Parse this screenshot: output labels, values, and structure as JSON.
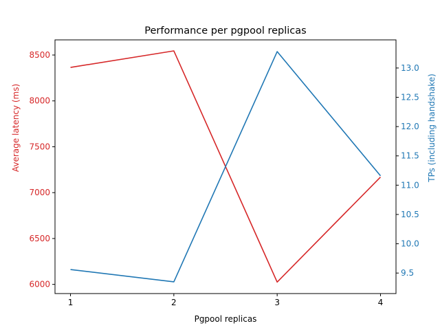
{
  "chart_data": {
    "type": "line",
    "title": "Performance per pgpool replicas",
    "xlabel": "Pgpool replicas",
    "x": [
      1,
      2,
      3,
      4
    ],
    "xticks": [
      "1",
      "2",
      "3",
      "4"
    ],
    "xlim": [
      0.85,
      4.15
    ],
    "series": [
      {
        "axis": "left",
        "color": "#d62728",
        "ylabel": "Average latency (ms)",
        "values": [
          8365,
          8545,
          6025,
          7170
        ],
        "ylim": [
          5900,
          8665
        ],
        "ticks": [
          6000,
          6500,
          7000,
          7500,
          8000,
          8500
        ],
        "tick_labels": [
          "6000",
          "6500",
          "7000",
          "7500",
          "8000",
          "8500"
        ]
      },
      {
        "axis": "right",
        "color": "#1f77b4",
        "ylabel": "TPs (including handshake)",
        "values": [
          9.56,
          9.35,
          13.28,
          11.16
        ],
        "ylim": [
          9.15,
          13.48
        ],
        "ticks": [
          9.5,
          10.0,
          10.5,
          11.0,
          11.5,
          12.0,
          12.5,
          13.0
        ],
        "tick_labels": [
          "9.5",
          "10.0",
          "10.5",
          "11.0",
          "11.5",
          "12.0",
          "12.5",
          "13.0"
        ]
      }
    ],
    "grid": false,
    "legend": "none"
  }
}
